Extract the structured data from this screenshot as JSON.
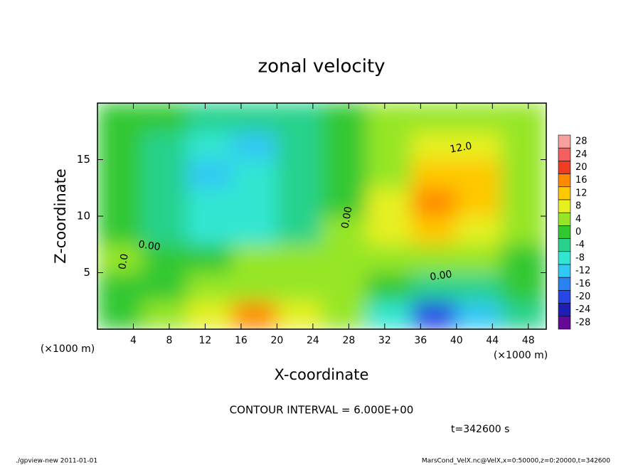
{
  "chart_data": {
    "type": "contour",
    "title": "zonal velocity",
    "xlabel": "X-coordinate",
    "ylabel": "Z-coordinate",
    "x_unit": "(×1000 m)",
    "y_unit": "(×1000 m)",
    "xlim": [
      0,
      50
    ],
    "ylim": [
      0,
      20
    ],
    "xticks": [
      4,
      8,
      12,
      16,
      20,
      24,
      28,
      32,
      36,
      40,
      44,
      48
    ],
    "yticks": [
      5,
      10,
      15
    ],
    "x": [
      2.5,
      7.5,
      12.5,
      17.5,
      22.5,
      27.5,
      32.5,
      37.5,
      42.5,
      47.5
    ],
    "y": [
      1.25,
      3.75,
      6.25,
      8.75,
      11.25,
      13.75,
      16.25,
      18.75
    ],
    "z": [
      [
        0,
        2,
        6,
        14,
        6,
        2,
        -10,
        -20,
        -14,
        -6
      ],
      [
        0,
        0,
        2,
        4,
        2,
        2,
        0,
        -4,
        -4,
        -2
      ],
      [
        2,
        0,
        0,
        2,
        2,
        4,
        4,
        2,
        2,
        0
      ],
      [
        0,
        -4,
        -8,
        -8,
        -4,
        2,
        6,
        10,
        8,
        4
      ],
      [
        -2,
        -6,
        -10,
        -8,
        -4,
        0,
        6,
        14,
        12,
        4
      ],
      [
        -2,
        -6,
        -12,
        -10,
        -4,
        0,
        4,
        12,
        10,
        4
      ],
      [
        -2,
        -4,
        -10,
        -12,
        -6,
        0,
        4,
        8,
        8,
        4
      ],
      [
        0,
        -2,
        -6,
        -6,
        -4,
        0,
        2,
        4,
        4,
        4
      ]
    ],
    "colorbar": {
      "levels": [
        28,
        24,
        20,
        16,
        12,
        8,
        4,
        0,
        -4,
        -8,
        -12,
        -16,
        -20,
        -24,
        -28
      ],
      "colors": [
        "#f7a0a0",
        "#f46060",
        "#f03c20",
        "#ff8a00",
        "#ffc800",
        "#e6f020",
        "#96e628",
        "#32c832",
        "#28d28c",
        "#32e6d2",
        "#32c8f5",
        "#2882f0",
        "#2846e6",
        "#1e1eb4",
        "#640a96"
      ]
    },
    "contour_labels": [
      "12.0",
      "0.00",
      "0.00",
      "0.00",
      "0.0"
    ],
    "note": "CONTOUR INTERVAL = 6.000E+00",
    "time": "t=342600 s",
    "footer_left": "./gpview-new  2011-01-01",
    "footer_right": "MarsCond_VelX.nc@VelX,x=0:50000,z=0:20000,t=342600"
  }
}
